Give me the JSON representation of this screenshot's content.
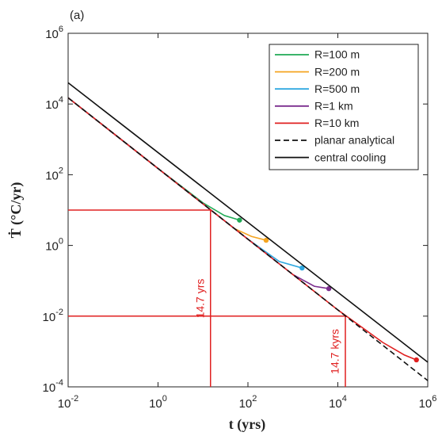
{
  "chart_data": {
    "type": "line",
    "panel_label": "(a)",
    "x_label": "t (yrs)",
    "y_label": "Ṫ (°C/yr)",
    "log_x": true,
    "log_y": true,
    "grid": false,
    "legend": "upper right",
    "xlim": [
      0.01,
      1000000
    ],
    "ylim": [
      0.0001,
      1000000
    ],
    "xticks": [
      {
        "value": 0.01,
        "label": "10^-2"
      },
      {
        "value": 1,
        "label": "10^0"
      },
      {
        "value": 100,
        "label": "10^2"
      },
      {
        "value": 10000,
        "label": "10^4"
      },
      {
        "value": 1000000,
        "label": "10^6"
      }
    ],
    "yticks": [
      {
        "value": 0.0001,
        "label": "10^-4"
      },
      {
        "value": 0.01,
        "label": "10^-2"
      },
      {
        "value": 1,
        "label": "10^0"
      },
      {
        "value": 100,
        "label": "10^2"
      },
      {
        "value": 10000,
        "label": "10^4"
      },
      {
        "value": 1000000,
        "label": "10^6"
      }
    ],
    "series": [
      {
        "name": "R=100 m",
        "color": "#1faa55",
        "end_marker": true,
        "x": [
          0.01,
          1,
          10,
          30,
          65
        ],
        "values": [
          15000,
          150,
          16,
          7,
          5.2
        ]
      },
      {
        "name": "R=200 m",
        "color": "#f5a623",
        "end_marker": true,
        "x": [
          0.01,
          10,
          50,
          120,
          254
        ],
        "values": [
          15000,
          15,
          3,
          1.8,
          1.4
        ]
      },
      {
        "name": "R=500 m",
        "color": "#2fa8e0",
        "end_marker": true,
        "x": [
          0.01,
          10,
          100,
          500,
          1600
        ],
        "values": [
          15000,
          15,
          1.5,
          0.35,
          0.23
        ]
      },
      {
        "name": "R=1 km",
        "color": "#7b2d8e",
        "end_marker": true,
        "x": [
          0.01,
          100,
          1000,
          3000,
          6300
        ],
        "values": [
          15000,
          1.5,
          0.15,
          0.07,
          0.06
        ]
      },
      {
        "name": "R=10 km",
        "color": "#e02020",
        "end_marker": true,
        "x": [
          0.01,
          10000,
          100000,
          300000,
          560000
        ],
        "values": [
          15000,
          0.015,
          0.0018,
          0.0008,
          0.00058
        ]
      },
      {
        "name": "planar analytical",
        "color": "#111111",
        "dash": true,
        "x": [
          0.01,
          1000000
        ],
        "values": [
          15000,
          0.00015
        ]
      },
      {
        "name": "central cooling",
        "color": "#111111",
        "x": [
          0.01,
          1000000
        ],
        "values": [
          40000,
          0.0005
        ]
      }
    ],
    "annotations": [
      {
        "text": "14.7 yrs",
        "x": 14.7,
        "y": 10,
        "color": "#e02020"
      },
      {
        "text": "14.7 kyrs",
        "x": 14700,
        "y": 0.01,
        "color": "#e02020"
      }
    ]
  }
}
